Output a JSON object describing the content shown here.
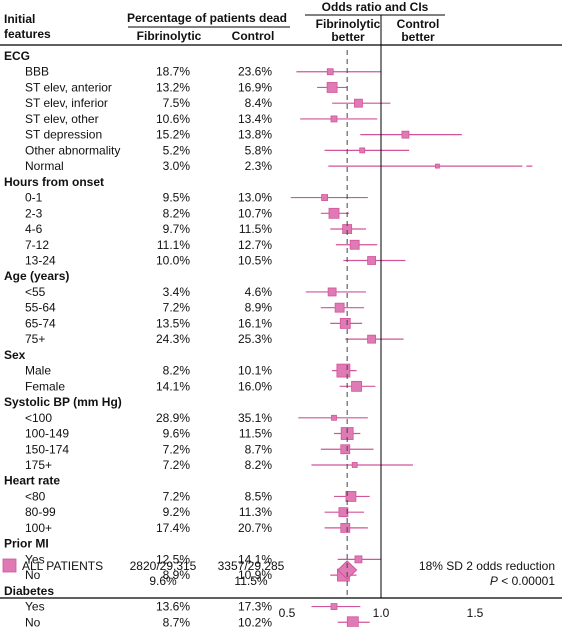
{
  "headers": {
    "features": "Initial features",
    "pct_group": "Percentage of patients dead",
    "col_fib": "Fibrinolytic",
    "col_ctrl": "Control",
    "or_group": "Odds ratio and CIs",
    "fib_better": "Fibrinolytic better",
    "ctrl_better": "Control better"
  },
  "colors": {
    "marker": "#d2549a",
    "marker_fill": "#e07ab4",
    "rule": "#000000",
    "dashed": "#444444"
  },
  "chart_data": {
    "type": "forest",
    "x_ticks": [
      0.5,
      1.0,
      1.5
    ],
    "x_tick_labels": [
      "0.5",
      "1.0",
      "1.5"
    ],
    "xlim": [
      0.47,
      1.82
    ],
    "reference_line": 1.0,
    "overall_line": 0.82,
    "groups": [
      {
        "name": "ECG",
        "rows": [
          {
            "label": "BBB",
            "fib": "18.7%",
            "ctrl": "23.6%",
            "or": 0.73,
            "lo": 0.55,
            "hi": 1.0,
            "size": 6
          },
          {
            "label": "ST elev, anterior",
            "fib": "13.2%",
            "ctrl": "16.9%",
            "or": 0.74,
            "lo": 0.66,
            "hi": 0.82,
            "size": 10
          },
          {
            "label": "ST elev, inferior",
            "fib": "7.5%",
            "ctrl": "8.4%",
            "or": 0.88,
            "lo": 0.74,
            "hi": 1.05,
            "size": 8
          },
          {
            "label": "ST elev, other",
            "fib": "10.6%",
            "ctrl": "13.4%",
            "or": 0.75,
            "lo": 0.57,
            "hi": 0.98,
            "size": 6
          },
          {
            "label": "ST depression",
            "fib": "15.2%",
            "ctrl": "13.8%",
            "or": 1.13,
            "lo": 0.89,
            "hi": 1.43,
            "size": 7
          },
          {
            "label": "Other abnormality",
            "fib": "5.2%",
            "ctrl": "5.8%",
            "or": 0.9,
            "lo": 0.7,
            "hi": 1.15,
            "size": 5
          },
          {
            "label": "Normal",
            "fib": "3.0%",
            "ctrl": "2.3%",
            "or": 1.3,
            "lo": 0.72,
            "hi": 1.72,
            "size": 4,
            "arrow": true
          }
        ]
      },
      {
        "name": "Hours from onset",
        "rows": [
          {
            "label": "0-1",
            "fib": "9.5%",
            "ctrl": "13.0%",
            "or": 0.7,
            "lo": 0.52,
            "hi": 0.93,
            "size": 6
          },
          {
            "label": "2-3",
            "fib": "8.2%",
            "ctrl": "10.7%",
            "or": 0.75,
            "lo": 0.68,
            "hi": 0.83,
            "size": 10
          },
          {
            "label": "4-6",
            "fib": "9.7%",
            "ctrl": "11.5%",
            "or": 0.82,
            "lo": 0.73,
            "hi": 0.92,
            "size": 9
          },
          {
            "label": "7-12",
            "fib": "11.1%",
            "ctrl": "12.7%",
            "or": 0.86,
            "lo": 0.76,
            "hi": 0.98,
            "size": 9
          },
          {
            "label": "13-24",
            "fib": "10.0%",
            "ctrl": "10.5%",
            "or": 0.95,
            "lo": 0.8,
            "hi": 1.13,
            "size": 8
          }
        ]
      },
      {
        "name": "Age (years)",
        "rows": [
          {
            "label": "<55",
            "fib": "3.4%",
            "ctrl": "4.6%",
            "or": 0.74,
            "lo": 0.6,
            "hi": 0.92,
            "size": 8
          },
          {
            "label": "55-64",
            "fib": "7.2%",
            "ctrl": "8.9%",
            "or": 0.78,
            "lo": 0.68,
            "hi": 0.91,
            "size": 9
          },
          {
            "label": "65-74",
            "fib": "13.5%",
            "ctrl": "16.1%",
            "or": 0.81,
            "lo": 0.73,
            "hi": 0.9,
            "size": 10
          },
          {
            "label": "75+",
            "fib": "24.3%",
            "ctrl": "25.3%",
            "or": 0.95,
            "lo": 0.81,
            "hi": 1.12,
            "size": 8
          }
        ]
      },
      {
        "name": "Sex",
        "rows": [
          {
            "label": "Male",
            "fib": "8.2%",
            "ctrl": "10.1%",
            "or": 0.8,
            "lo": 0.74,
            "hi": 0.87,
            "size": 13
          },
          {
            "label": "Female",
            "fib": "14.1%",
            "ctrl": "16.0%",
            "or": 0.87,
            "lo": 0.78,
            "hi": 0.97,
            "size": 10
          }
        ]
      },
      {
        "name": "Systolic BP (mm Hg)",
        "rows": [
          {
            "label": "<100",
            "fib": "28.9%",
            "ctrl": "35.1%",
            "or": 0.75,
            "lo": 0.56,
            "hi": 0.93,
            "size": 5
          },
          {
            "label": "100-149",
            "fib": "9.6%",
            "ctrl": "11.5%",
            "or": 0.82,
            "lo": 0.75,
            "hi": 0.89,
            "size": 12
          },
          {
            "label": "150-174",
            "fib": "7.2%",
            "ctrl": "8.7%",
            "or": 0.81,
            "lo": 0.68,
            "hi": 0.96,
            "size": 9
          },
          {
            "label": "175+",
            "fib": "7.2%",
            "ctrl": "8.2%",
            "or": 0.86,
            "lo": 0.63,
            "hi": 1.17,
            "size": 5
          }
        ]
      },
      {
        "name": "Heart rate",
        "rows": [
          {
            "label": "<80",
            "fib": "7.2%",
            "ctrl": "8.5%",
            "or": 0.84,
            "lo": 0.75,
            "hi": 0.94,
            "size": 10
          },
          {
            "label": "80-99",
            "fib": "9.2%",
            "ctrl": "11.3%",
            "or": 0.8,
            "lo": 0.7,
            "hi": 0.91,
            "size": 9
          },
          {
            "label": "100+",
            "fib": "17.4%",
            "ctrl": "20.7%",
            "or": 0.81,
            "lo": 0.7,
            "hi": 0.93,
            "size": 9
          }
        ]
      },
      {
        "name": "Prior MI",
        "rows": [
          {
            "label": "Yes",
            "fib": "12.5%",
            "ctrl": "14.1%",
            "or": 0.88,
            "lo": 0.77,
            "hi": 1.0,
            "size": 7
          },
          {
            "label": "No",
            "fib": "8.9%",
            "ctrl": "10.9%",
            "or": 0.8,
            "lo": 0.73,
            "hi": 0.87,
            "size": 12
          }
        ]
      },
      {
        "name": "Diabetes",
        "rows": [
          {
            "label": "Yes",
            "fib": "13.6%",
            "ctrl": "17.3%",
            "or": 0.75,
            "lo": 0.63,
            "hi": 0.89,
            "size": 6
          },
          {
            "label": "No",
            "fib": "8.7%",
            "ctrl": "10.2%",
            "or": 0.85,
            "lo": 0.77,
            "hi": 0.94,
            "size": 11
          }
        ]
      }
    ],
    "overall": {
      "label": "ALL PATIENTS",
      "fib_line1": "2820/29,315",
      "fib_line2": "9.6%",
      "ctrl_line1": "3357/29,285",
      "ctrl_line2": "11.5%",
      "or": 0.82,
      "lo": 0.77,
      "hi": 0.87,
      "summary_line1": "18% SD 2 odds reduction",
      "summary_line2": "P < 0.00001"
    }
  }
}
